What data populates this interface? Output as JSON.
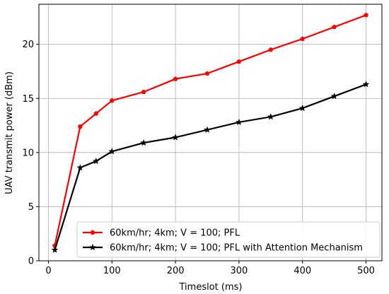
{
  "chart_data": {
    "type": "line",
    "title": "",
    "xlabel": "Timeslot (ms)",
    "ylabel": "UAV transmit power (dBm)",
    "xlim": [
      -15,
      525
    ],
    "ylim": [
      0,
      23.7
    ],
    "xticks": [
      0,
      100,
      200,
      300,
      400,
      500
    ],
    "yticks": [
      0,
      5,
      10,
      15,
      20
    ],
    "grid": true,
    "legend_position": "lower-right",
    "series": [
      {
        "name": "60km/hr; 4km; V = 100; PFL",
        "color": "#ff0000",
        "marker": "pentagon",
        "x": [
          10,
          50,
          75,
          100,
          150,
          200,
          250,
          300,
          350,
          400,
          450,
          500
        ],
        "y": [
          1.4,
          12.4,
          13.6,
          14.8,
          15.6,
          16.8,
          17.3,
          18.4,
          19.5,
          20.5,
          21.6,
          22.7
        ]
      },
      {
        "name": "60km/hr; 4km; V = 100; PFL with Attention Mechanism",
        "color": "#000000",
        "marker": "star",
        "x": [
          10,
          50,
          75,
          100,
          150,
          200,
          250,
          300,
          350,
          400,
          450,
          500
        ],
        "y": [
          1.0,
          8.6,
          9.2,
          10.1,
          10.9,
          11.4,
          12.1,
          12.8,
          13.3,
          14.1,
          15.2,
          16.3
        ]
      }
    ]
  }
}
